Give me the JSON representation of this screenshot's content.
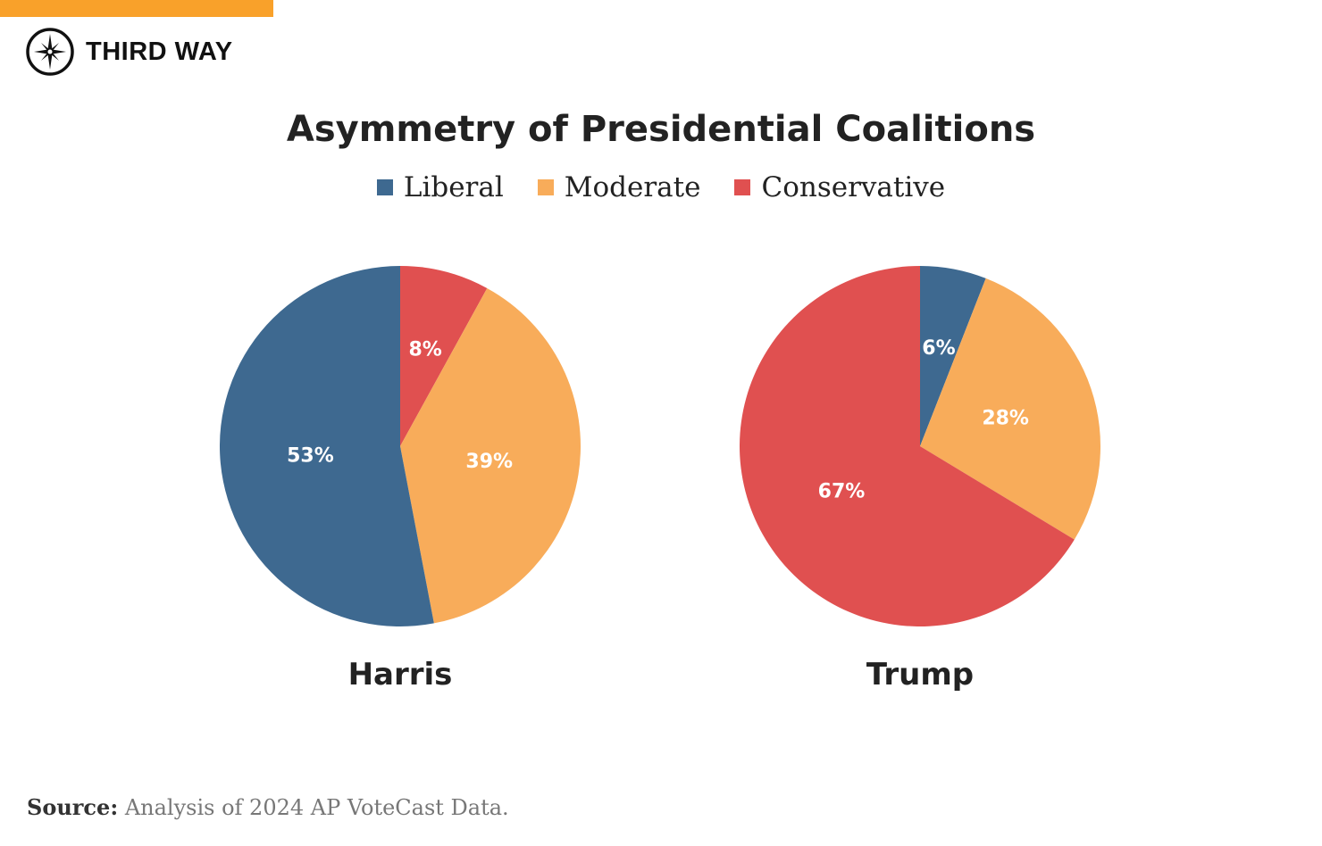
{
  "brand": {
    "name": "THIRD WAY",
    "accent": "#f9a12a"
  },
  "chart_data": {
    "type": "pie",
    "title": "Asymmetry of Presidential Coalitions",
    "legend": {
      "placement": "top",
      "entries": [
        {
          "name": "Liberal",
          "color": "#3e6990"
        },
        {
          "name": "Moderate",
          "color": "#f8ac5a"
        },
        {
          "name": "Conservative",
          "color": "#e05050"
        }
      ]
    },
    "start": "12 o'clock, clockwise",
    "pies": [
      {
        "name": "Harris",
        "slices": [
          {
            "category": "Conservative",
            "value": 8,
            "label": "8%"
          },
          {
            "category": "Moderate",
            "value": 39,
            "label": "39%"
          },
          {
            "category": "Liberal",
            "value": 53,
            "label": "53%"
          }
        ]
      },
      {
        "name": "Trump",
        "slices": [
          {
            "category": "Liberal",
            "value": 6,
            "label": "6%"
          },
          {
            "category": "Moderate",
            "value": 28,
            "label": "28%"
          },
          {
            "category": "Conservative",
            "value": 67,
            "label": "67%"
          }
        ]
      }
    ]
  },
  "source": {
    "label": "Source:",
    "text": " Analysis of 2024 AP VoteCast Data."
  }
}
